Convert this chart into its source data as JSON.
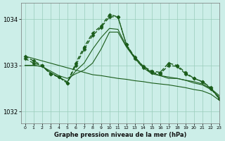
{
  "background_color": "#cceee8",
  "grid_color": "#99ccbb",
  "line_color": "#1a5c1a",
  "title": "Graphe pression niveau de la mer (hPa)",
  "xlim": [
    -0.5,
    23
  ],
  "ylim": [
    1031.75,
    1034.35
  ],
  "yticks": [
    1032,
    1033,
    1034
  ],
  "xticks": [
    0,
    1,
    2,
    3,
    4,
    5,
    6,
    7,
    8,
    9,
    10,
    11,
    12,
    13,
    14,
    15,
    16,
    17,
    18,
    19,
    20,
    21,
    22,
    23
  ],
  "series": [
    {
      "x": [
        0,
        1,
        2,
        3,
        4,
        5,
        6,
        7,
        8,
        9,
        10,
        11,
        12,
        13,
        14,
        15,
        16,
        17,
        18,
        19,
        20,
        21,
        22,
        23
      ],
      "y": [
        1033.2,
        1033.15,
        1033.1,
        1033.05,
        1033.0,
        1032.95,
        1032.9,
        1032.85,
        1032.8,
        1032.78,
        1032.75,
        1032.72,
        1032.7,
        1032.67,
        1032.65,
        1032.62,
        1032.6,
        1032.58,
        1032.55,
        1032.52,
        1032.48,
        1032.45,
        1032.38,
        1032.25
      ],
      "linestyle": "-",
      "linewidth": 0.8,
      "marker": null
    },
    {
      "x": [
        0,
        1,
        2,
        3,
        4,
        5,
        6,
        7,
        8,
        9,
        10,
        11,
        12,
        13,
        14,
        15,
        16,
        17,
        18,
        19,
        20,
        21,
        22,
        23
      ],
      "y": [
        1033.0,
        1033.0,
        1032.98,
        1032.88,
        1032.78,
        1032.72,
        1032.82,
        1032.9,
        1033.05,
        1033.35,
        1033.72,
        1033.72,
        1033.4,
        1033.15,
        1032.95,
        1032.82,
        1032.78,
        1032.72,
        1032.72,
        1032.68,
        1032.65,
        1032.6,
        1032.5,
        1032.35
      ],
      "linestyle": "-",
      "linewidth": 0.8,
      "marker": null
    },
    {
      "x": [
        0,
        1,
        2,
        3,
        4,
        5,
        6,
        7,
        8,
        9,
        10,
        11,
        12,
        13,
        14,
        15,
        16,
        17,
        18,
        19,
        20,
        21,
        22,
        23
      ],
      "y": [
        1033.0,
        1033.0,
        1032.98,
        1032.85,
        1032.75,
        1032.65,
        1032.88,
        1033.05,
        1033.35,
        1033.6,
        1033.8,
        1033.78,
        1033.42,
        1033.18,
        1032.98,
        1032.85,
        1032.78,
        1032.75,
        1032.72,
        1032.68,
        1032.62,
        1032.58,
        1032.48,
        1032.32
      ],
      "linestyle": "-",
      "linewidth": 0.8,
      "marker": null
    },
    {
      "x": [
        0,
        1,
        2,
        3,
        4,
        5,
        6,
        7,
        8,
        9,
        10,
        11,
        12,
        13,
        14,
        15,
        16,
        17,
        18,
        19,
        20,
        21,
        22,
        23
      ],
      "y": [
        1033.15,
        1033.05,
        1033.0,
        1032.82,
        1032.75,
        1032.62,
        1033.0,
        1033.35,
        1033.65,
        1033.82,
        1034.05,
        1034.05,
        1033.45,
        1033.15,
        1032.95,
        1032.85,
        1032.82,
        1033.0,
        1032.98,
        1032.82,
        1032.72,
        1032.65,
        1032.5,
        1032.28
      ],
      "linestyle": "--",
      "linewidth": 1.0,
      "marker": "D"
    },
    {
      "x": [
        0,
        1,
        2,
        3,
        4,
        5,
        6,
        7,
        8,
        9,
        10,
        11,
        12,
        13,
        14,
        15,
        16,
        17,
        18,
        19,
        20,
        21,
        22,
        23
      ],
      "y": [
        1033.2,
        1033.1,
        1033.0,
        1032.82,
        1032.75,
        1032.62,
        1033.05,
        1033.4,
        1033.7,
        1033.85,
        1034.1,
        1034.05,
        1033.45,
        1033.18,
        1032.98,
        1032.88,
        1032.85,
        1033.05,
        1033.0,
        1032.85,
        1032.72,
        1032.65,
        1032.52,
        1032.28
      ],
      "linestyle": "--",
      "linewidth": 1.0,
      "marker": "D"
    }
  ]
}
